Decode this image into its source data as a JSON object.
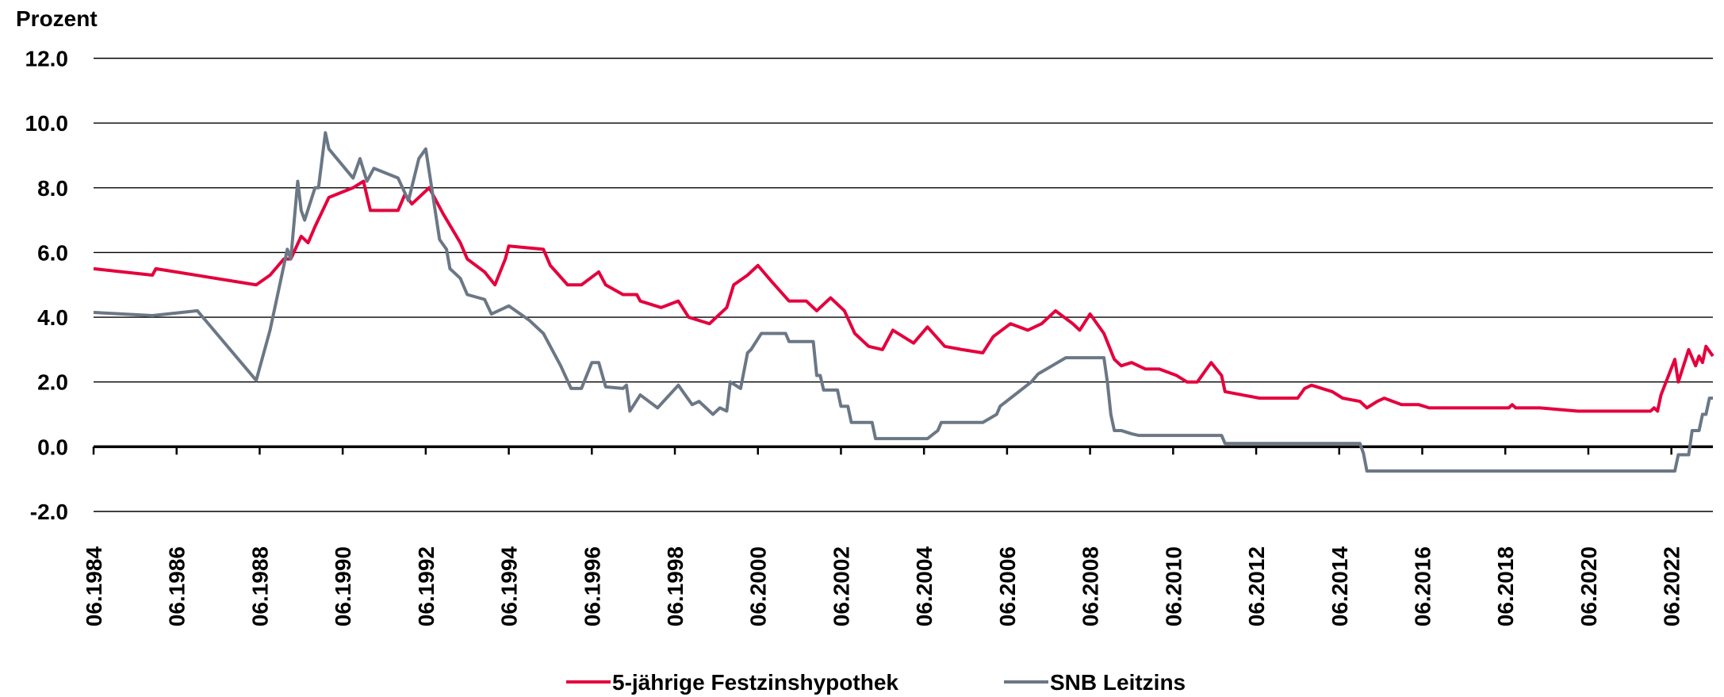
{
  "chart_data": {
    "type": "line",
    "y_label": "Prozent",
    "xlim": [
      "06.1984",
      "06.2023"
    ],
    "xticks": [
      "06.1984",
      "06.1986",
      "06.1988",
      "06.1990",
      "06.1992",
      "06.1994",
      "06.1996",
      "06.1998",
      "06.2000",
      "06.2002",
      "06.2004",
      "06.2006",
      "06.2008",
      "06.2010",
      "06.2012",
      "06.2014",
      "06.2016",
      "06.2018",
      "06.2020",
      "06.2022"
    ],
    "ylim": [
      -2,
      12
    ],
    "yticks": [
      {
        "value": -2,
        "label": "-2.0"
      },
      {
        "value": 0,
        "label": "0.0"
      },
      {
        "value": 2,
        "label": "2.0"
      },
      {
        "value": 4,
        "label": "4.0"
      },
      {
        "value": 6,
        "label": "6.0"
      },
      {
        "value": 8,
        "label": "8.0"
      },
      {
        "value": 10,
        "label": "10.0"
      },
      {
        "value": 12,
        "label": "12.0"
      }
    ],
    "grid": true,
    "legend": "bottom",
    "series": [
      {
        "name": "5-jährige Festzinshypothek",
        "color": "#e4003c",
        "x": [
          "06.1984",
          "11.1985",
          "12.1985",
          "05.1988",
          "09.1988",
          "01.1989",
          "03.1989",
          "06.1989",
          "08.1989",
          "10.1989",
          "02.1990",
          "09.1990",
          "12.1990",
          "02.1991",
          "10.1991",
          "12.1991",
          "02.1992",
          "07.1992",
          "11.1992",
          "04.1993",
          "06.1993",
          "11.1993",
          "02.1994",
          "05.1994",
          "06.1994",
          "04.1995",
          "06.1995",
          "11.1995",
          "03.1996",
          "08.1996",
          "10.1996",
          "03.1997",
          "07.1997",
          "08.1997",
          "02.1998",
          "07.1998",
          "10.1998",
          "04.1999",
          "09.1999",
          "11.1999",
          "03.2000",
          "06.2000",
          "10.2000",
          "03.2001",
          "08.2001",
          "11.2001",
          "03.2002",
          "07.2002",
          "10.2002",
          "02.2003",
          "06.2003",
          "09.2003",
          "12.2003",
          "03.2004",
          "07.2004",
          "12.2004",
          "05.2005",
          "11.2005",
          "02.2006",
          "07.2006",
          "12.2006",
          "04.2007",
          "08.2007",
          "01.2008",
          "03.2008",
          "06.2008",
          "10.2008",
          "01.2009",
          "03.2009",
          "06.2009",
          "10.2009",
          "02.2010",
          "07.2010",
          "10.2010",
          "01.2011",
          "03.2011",
          "05.2011",
          "08.2011",
          "09.2011",
          "02.2012",
          "07.2012",
          "06.2013",
          "08.2013",
          "10.2013",
          "04.2014",
          "07.2014",
          "12.2014",
          "02.2015",
          "05.2015",
          "07.2015",
          "12.2015",
          "05.2016",
          "08.2016",
          "07.2018",
          "08.2018",
          "09.2018",
          "04.2019",
          "03.2020",
          "12.2021",
          "01.2022",
          "02.2022",
          "03.2022",
          "07.2022",
          "08.2022",
          "11.2022",
          "01.2023",
          "02.2023",
          "03.2023",
          "04.2023",
          "06.2023"
        ],
        "values": [
          5.5,
          5.3,
          5.5,
          5.0,
          5.3,
          5.8,
          5.8,
          6.5,
          6.3,
          6.8,
          7.7,
          8.0,
          8.2,
          7.3,
          7.3,
          7.8,
          7.5,
          8.0,
          7.2,
          6.3,
          5.8,
          5.4,
          5.0,
          5.8,
          6.2,
          6.1,
          5.6,
          5.0,
          5.0,
          5.4,
          5.0,
          4.7,
          4.7,
          4.5,
          4.3,
          4.5,
          4.0,
          3.8,
          4.3,
          5.0,
          5.3,
          5.6,
          5.1,
          4.5,
          4.5,
          4.2,
          4.6,
          4.2,
          3.5,
          3.1,
          3.0,
          3.6,
          3.4,
          3.2,
          3.7,
          3.1,
          3.0,
          2.9,
          3.4,
          3.8,
          3.6,
          3.8,
          4.2,
          3.8,
          3.6,
          4.1,
          3.5,
          2.7,
          2.5,
          2.6,
          2.4,
          2.4,
          2.2,
          2.0,
          2.0,
          2.3,
          2.6,
          2.2,
          1.7,
          1.6,
          1.5,
          1.5,
          1.8,
          1.9,
          1.7,
          1.5,
          1.4,
          1.2,
          1.4,
          1.5,
          1.3,
          1.3,
          1.2,
          1.2,
          1.3,
          1.2,
          1.2,
          1.1,
          1.1,
          1.2,
          1.1,
          1.6,
          2.7,
          2.0,
          3.0,
          2.5,
          2.8,
          2.6,
          3.1,
          2.8
        ]
      },
      {
        "name": "SNB Leitzins",
        "color": "#6b7785",
        "x": [
          "06.1984",
          "11.1985",
          "12.1986",
          "05.1988",
          "09.1988",
          "02.1989",
          "03.1989",
          "05.1989",
          "06.1989",
          "07.1989",
          "10.1989",
          "11.1989",
          "01.1990",
          "02.1990",
          "09.1990",
          "11.1990",
          "01.1991",
          "03.1991",
          "10.1991",
          "01.1992",
          "04.1992",
          "06.1992",
          "08.1992",
          "10.1992",
          "12.1992",
          "01.1993",
          "04.1993",
          "06.1993",
          "11.1993",
          "01.1994",
          "06.1994",
          "12.1994",
          "04.1995",
          "09.1995",
          "12.1995",
          "03.1996",
          "06.1996",
          "08.1996",
          "10.1996",
          "03.1997",
          "04.1997",
          "05.1997",
          "08.1997",
          "01.1998",
          "07.1998",
          "11.1998",
          "01.1999",
          "05.1999",
          "07.1999",
          "09.1999",
          "10.1999",
          "01.2000",
          "03.2000",
          "04.2000",
          "07.2000",
          "02.2001",
          "03.2001",
          "10.2001",
          "11.2001",
          "12.2001",
          "01.2002",
          "05.2002",
          "06.2002",
          "08.2002",
          "09.2002",
          "03.2003",
          "04.2003",
          "07.2004",
          "10.2004",
          "11.2004",
          "11.2005",
          "03.2006",
          "04.2006",
          "07.2006",
          "10.2006",
          "01.2007",
          "03.2007",
          "07.2007",
          "11.2007",
          "10.2008",
          "11.2008",
          "12.2008",
          "01.2009",
          "03.2009",
          "06.2009",
          "08.2009",
          "08.2011",
          "09.2011",
          "12.2014",
          "01.2015",
          "02.2015",
          "07.2022",
          "08.2022",
          "11.2022",
          "12.2022",
          "02.2023",
          "03.2023",
          "04.2023",
          "05.2023",
          "06.2023"
        ],
        "values": [
          4.15,
          4.05,
          4.2,
          2.05,
          3.6,
          6.1,
          5.8,
          8.2,
          7.3,
          7.0,
          8.0,
          8.0,
          9.7,
          9.2,
          8.3,
          8.9,
          8.2,
          8.6,
          8.3,
          7.6,
          8.9,
          9.2,
          7.8,
          6.4,
          6.1,
          5.5,
          5.2,
          4.7,
          4.55,
          4.1,
          4.35,
          3.9,
          3.5,
          2.5,
          1.8,
          1.8,
          2.6,
          2.6,
          1.85,
          1.8,
          1.9,
          1.1,
          1.6,
          1.2,
          1.9,
          1.3,
          1.4,
          1.0,
          1.2,
          1.1,
          2.0,
          1.8,
          2.9,
          3.0,
          3.5,
          3.5,
          3.25,
          3.25,
          2.2,
          2.2,
          1.75,
          1.75,
          1.25,
          1.25,
          0.75,
          0.75,
          0.25,
          0.25,
          0.5,
          0.75,
          0.75,
          1.0,
          1.25,
          1.5,
          1.75,
          2.0,
          2.25,
          2.5,
          2.75,
          2.75,
          2.0,
          1.0,
          0.5,
          0.5,
          0.4,
          0.35,
          0.35,
          0.1,
          0.1,
          -0.2,
          -0.75,
          -0.75,
          -0.25,
          -0.25,
          0.5,
          0.5,
          1.0,
          1.0,
          1.5,
          1.5
        ]
      }
    ]
  }
}
